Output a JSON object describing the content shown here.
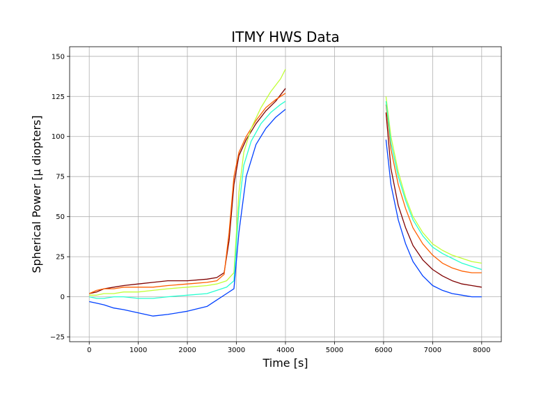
{
  "chart_data": {
    "type": "line",
    "title": "ITMY HWS Data",
    "xlabel": "Time [s]",
    "ylabel": "Spherical Power [μ diopters]",
    "xlim": [
      -400,
      8400
    ],
    "ylim": [
      -28,
      156
    ],
    "xticks": [
      0,
      1000,
      2000,
      3000,
      4000,
      5000,
      6000,
      7000,
      8000
    ],
    "yticks": [
      -25,
      0,
      25,
      50,
      75,
      100,
      125,
      150
    ],
    "grid": true,
    "legend": "none",
    "series": [
      {
        "color": "#7f0000",
        "segments": [
          {
            "x": [
              0,
              150,
              300,
              500,
              700,
              1000,
              1300,
              1600,
              2000,
              2400,
              2600,
              2750,
              2850,
              2950,
              3050,
              3200,
              3400,
              3600,
              3800,
              4000
            ],
            "y": [
              2,
              3,
              5,
              6,
              7,
              8,
              9,
              10,
              10,
              11,
              12,
              15,
              35,
              70,
              88,
              98,
              108,
              116,
              122,
              130
            ]
          },
          {
            "x": [
              6050,
              6150,
              6300,
              6450,
              6600,
              6800,
              7000,
              7200,
              7400,
              7600,
              7800,
              8000
            ],
            "y": [
              115,
              80,
              57,
              43,
              32,
              23,
              17,
              13,
              10,
              8,
              7,
              6
            ]
          }
        ]
      },
      {
        "color": "#ff6000",
        "segments": [
          {
            "x": [
              0,
              150,
              300,
              500,
              700,
              1000,
              1300,
              1600,
              2000,
              2400,
              2600,
              2750,
              2850,
              2950,
              3050,
              3200,
              3400,
              3600,
              3800,
              4000
            ],
            "y": [
              2,
              4,
              5,
              5,
              6,
              6,
              6,
              7,
              8,
              9,
              10,
              14,
              40,
              75,
              90,
              100,
              110,
              118,
              123,
              127
            ]
          },
          {
            "x": [
              6050,
              6150,
              6300,
              6450,
              6600,
              6800,
              7000,
              7200,
              7400,
              7600,
              7800,
              8000
            ],
            "y": [
              120,
              92,
              70,
              55,
              43,
              33,
              26,
              21,
              18,
              16,
              15,
              15
            ]
          }
        ]
      },
      {
        "color": "#c0ff36",
        "segments": [
          {
            "x": [
              0,
              150,
              300,
              500,
              700,
              1000,
              1300,
              1600,
              2000,
              2400,
              2600,
              2800,
              2950,
              3050,
              3150,
              3300,
              3500,
              3700,
              3900,
              4000
            ],
            "y": [
              1,
              1,
              2,
              2,
              3,
              3,
              4,
              5,
              6,
              7,
              8,
              10,
              15,
              65,
              90,
              105,
              118,
              128,
              136,
              142
            ]
          },
          {
            "x": [
              6050,
              6150,
              6300,
              6450,
              6600,
              6800,
              7000,
              7200,
              7400,
              7600,
              7800,
              8000
            ],
            "y": [
              125,
              100,
              78,
              62,
              50,
              40,
              33,
              29,
              26,
              24,
              22,
              21
            ]
          }
        ]
      },
      {
        "color": "#26ffd0",
        "segments": [
          {
            "x": [
              0,
              150,
              300,
              500,
              700,
              1000,
              1300,
              1600,
              2000,
              2400,
              2600,
              2800,
              2950,
              3050,
              3150,
              3300,
              3500,
              3700,
              3900,
              4000
            ],
            "y": [
              0,
              -1,
              -1,
              0,
              0,
              -1,
              -1,
              0,
              1,
              2,
              4,
              6,
              10,
              55,
              82,
              97,
              108,
              115,
              120,
              122
            ]
          },
          {
            "x": [
              6050,
              6150,
              6300,
              6450,
              6600,
              6800,
              7000,
              7200,
              7400,
              7600,
              7800,
              8000
            ],
            "y": [
              122,
              96,
              75,
              60,
              48,
              38,
              31,
              27,
              24,
              21,
              19,
              17
            ]
          }
        ]
      },
      {
        "color": "#0040ff",
        "segments": [
          {
            "x": [
              0,
              150,
              300,
              500,
              700,
              1000,
              1300,
              1600,
              2000,
              2400,
              2600,
              2800,
              2950,
              3050,
              3200,
              3400,
              3600,
              3800,
              4000
            ],
            "y": [
              -3,
              -4,
              -5,
              -7,
              -8,
              -10,
              -12,
              -11,
              -9,
              -6,
              -2,
              2,
              5,
              40,
              75,
              95,
              105,
              112,
              117
            ]
          },
          {
            "x": [
              6050,
              6150,
              6300,
              6450,
              6600,
              6800,
              7000,
              7200,
              7400,
              7600,
              7800,
              8000
            ],
            "y": [
              98,
              70,
              48,
              33,
              22,
              13,
              7,
              4,
              2,
              1,
              0,
              0
            ]
          }
        ]
      }
    ]
  }
}
